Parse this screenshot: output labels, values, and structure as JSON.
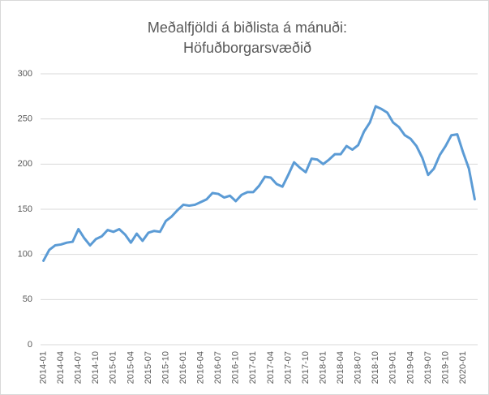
{
  "chart_data": {
    "type": "line",
    "title": [
      "Meðalfjöldi á biðlista á mánuði:",
      "Höfuðborgarsvæðið"
    ],
    "categories": [
      "2014-01",
      null,
      null,
      "2014-04",
      null,
      null,
      "2014-07",
      null,
      null,
      "2014-10",
      null,
      null,
      "2015-01",
      null,
      null,
      "2015-04",
      null,
      null,
      "2015-07",
      null,
      null,
      "2015-10",
      null,
      null,
      "2016-01",
      null,
      null,
      "2016-04",
      null,
      null,
      "2016-07",
      null,
      null,
      "2016-10",
      null,
      null,
      "2017-01",
      null,
      null,
      "2017-04",
      null,
      null,
      "2017-07",
      null,
      null,
      "2017-10",
      null,
      null,
      "2018-01",
      null,
      null,
      "2018-04",
      null,
      null,
      "2018-07",
      null,
      null,
      "2018-10",
      null,
      null,
      "2019-01",
      null,
      null,
      "2019-04",
      null,
      null,
      "2019-07",
      null,
      null,
      "2019-10",
      null,
      null,
      "2020-01",
      null,
      null
    ],
    "values": [
      93,
      105,
      110,
      111,
      113,
      114,
      128,
      118,
      110,
      117,
      120,
      127,
      125,
      128,
      122,
      113,
      123,
      115,
      124,
      126,
      125,
      137,
      142,
      149,
      155,
      154,
      155,
      158,
      161,
      168,
      167,
      163,
      165,
      159,
      166,
      169,
      169,
      176,
      186,
      185,
      178,
      175,
      188,
      202,
      196,
      191,
      206,
      205,
      200,
      205,
      211,
      211,
      220,
      216,
      221,
      236,
      246,
      264,
      261,
      257,
      246,
      241,
      232,
      228,
      220,
      207,
      188,
      195,
      210,
      220,
      232,
      233,
      213,
      195,
      161
    ],
    "color": "#5b9bd5",
    "ylim": [
      0,
      300
    ],
    "yticks": [
      0,
      50,
      100,
      150,
      200,
      250,
      300
    ],
    "grid": true
  }
}
